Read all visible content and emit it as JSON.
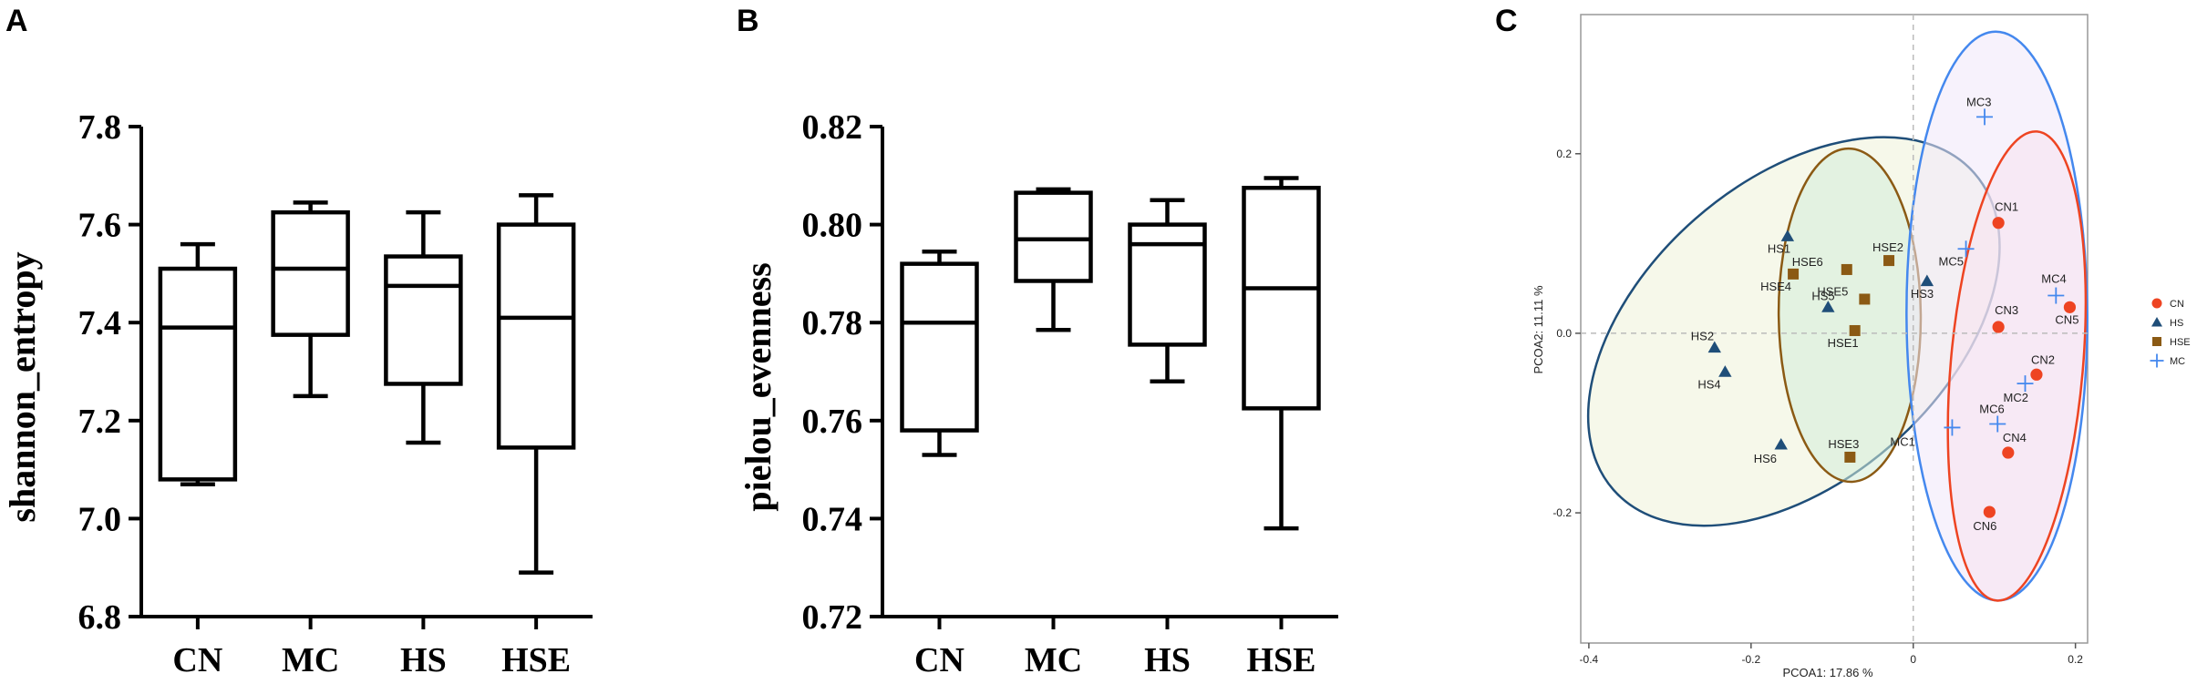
{
  "chart_data": [
    {
      "panel": "A",
      "type": "box",
      "title": "",
      "xlabel": "",
      "ylabel": "shannon_entropy",
      "ylim": [
        6.8,
        7.8
      ],
      "yticks": [
        "6.8",
        "7.0",
        "7.2",
        "7.4",
        "7.6",
        "7.8"
      ],
      "categories": [
        "CN",
        "MC",
        "HS",
        "HSE"
      ],
      "boxes": [
        {
          "min": 7.07,
          "q1": 7.08,
          "median": 7.39,
          "q3": 7.51,
          "max": 7.56
        },
        {
          "min": 7.25,
          "q1": 7.375,
          "median": 7.51,
          "q3": 7.625,
          "max": 7.645
        },
        {
          "min": 7.155,
          "q1": 7.275,
          "median": 7.475,
          "q3": 7.535,
          "max": 7.625
        },
        {
          "min": 6.89,
          "q1": 7.145,
          "median": 7.41,
          "q3": 7.6,
          "max": 7.66
        }
      ]
    },
    {
      "panel": "B",
      "type": "box",
      "title": "",
      "xlabel": "",
      "ylabel": "pielou_evenness",
      "ylim": [
        0.72,
        0.82
      ],
      "yticks": [
        "0.72",
        "0.74",
        "0.76",
        "0.78",
        "0.80",
        "0.82"
      ],
      "categories": [
        "CN",
        "MC",
        "HS",
        "HSE"
      ],
      "boxes": [
        {
          "min": 0.753,
          "q1": 0.758,
          "median": 0.78,
          "q3": 0.792,
          "max": 0.7945
        },
        {
          "min": 0.7785,
          "q1": 0.7885,
          "median": 0.797,
          "q3": 0.8065,
          "max": 0.8072
        },
        {
          "min": 0.768,
          "q1": 0.7755,
          "median": 0.796,
          "q3": 0.8,
          "max": 0.805
        },
        {
          "min": 0.738,
          "q1": 0.7625,
          "median": 0.787,
          "q3": 0.8075,
          "max": 0.8095
        }
      ]
    },
    {
      "panel": "C",
      "type": "scatter",
      "title": "",
      "xlabel": "PCOA1:  17.86 %",
      "ylabel": "PCOA2:  11.11 %",
      "xlim": [
        -0.41,
        0.215
      ],
      "ylim": [
        -0.345,
        0.355
      ],
      "xticks": [
        "-0.4",
        "-0.2",
        "0",
        "0.2"
      ],
      "yticks": [
        "-0.2",
        "0.0",
        "0.2"
      ],
      "legend_position": "right",
      "series": [
        {
          "name": "CN",
          "color": "#ee4422",
          "marker": "circle",
          "points": [
            {
              "label": "CN1",
              "x": 0.105,
              "y": 0.123
            },
            {
              "label": "CN2",
              "x": 0.152,
              "y": -0.046
            },
            {
              "label": "CN3",
              "x": 0.105,
              "y": 0.007
            },
            {
              "label": "CN4",
              "x": 0.117,
              "y": -0.133
            },
            {
              "label": "CN5",
              "x": 0.193,
              "y": 0.029
            },
            {
              "label": "CN6",
              "x": 0.094,
              "y": -0.199
            }
          ]
        },
        {
          "name": "HS",
          "color": "#1f4e79",
          "marker": "triangle",
          "points": [
            {
              "label": "HS1",
              "x": -0.155,
              "y": 0.108
            },
            {
              "label": "HS2",
              "x": -0.245,
              "y": -0.016
            },
            {
              "label": "HS3",
              "x": 0.017,
              "y": 0.058
            },
            {
              "label": "HS4",
              "x": -0.232,
              "y": -0.043
            },
            {
              "label": "HS5",
              "x": -0.105,
              "y": 0.029
            },
            {
              "label": "HS6",
              "x": -0.163,
              "y": -0.124
            }
          ]
        },
        {
          "name": "HSE",
          "color": "#8b5a14",
          "marker": "square",
          "points": [
            {
              "label": "HSE1",
              "x": -0.072,
              "y": 0.003
            },
            {
              "label": "HSE2",
              "x": -0.03,
              "y": 0.081
            },
            {
              "label": "HSE3",
              "x": -0.078,
              "y": -0.138
            },
            {
              "label": "HSE4",
              "x": -0.148,
              "y": 0.066
            },
            {
              "label": "HSE5",
              "x": -0.06,
              "y": 0.038
            },
            {
              "label": "HSE6",
              "x": -0.082,
              "y": 0.071
            }
          ]
        },
        {
          "name": "MC",
          "color": "#4488ee",
          "marker": "plus",
          "points": [
            {
              "label": "MC1",
              "x": 0.048,
              "y": -0.105
            },
            {
              "label": "MC2",
              "x": 0.138,
              "y": -0.056
            },
            {
              "label": "MC3",
              "x": 0.088,
              "y": 0.241
            },
            {
              "label": "MC4",
              "x": 0.176,
              "y": 0.042
            },
            {
              "label": "MC5",
              "x": 0.065,
              "y": 0.094
            },
            {
              "label": "MC6",
              "x": 0.104,
              "y": -0.101
            }
          ]
        }
      ]
    }
  ],
  "panel_labels": [
    "A",
    "B",
    "C"
  ],
  "colors": {
    "CN": "#ee4422",
    "HS": "#1f4e79",
    "HSE": "#8b5a14",
    "MC": "#4488ee",
    "HS_ellipse_fill": "#eef2d8",
    "HSE_ellipse_fill": "#d4ecd8",
    "MC_ellipse_fill": "#f0e8fa",
    "CN_ellipse_fill": "#f8e2ee"
  }
}
